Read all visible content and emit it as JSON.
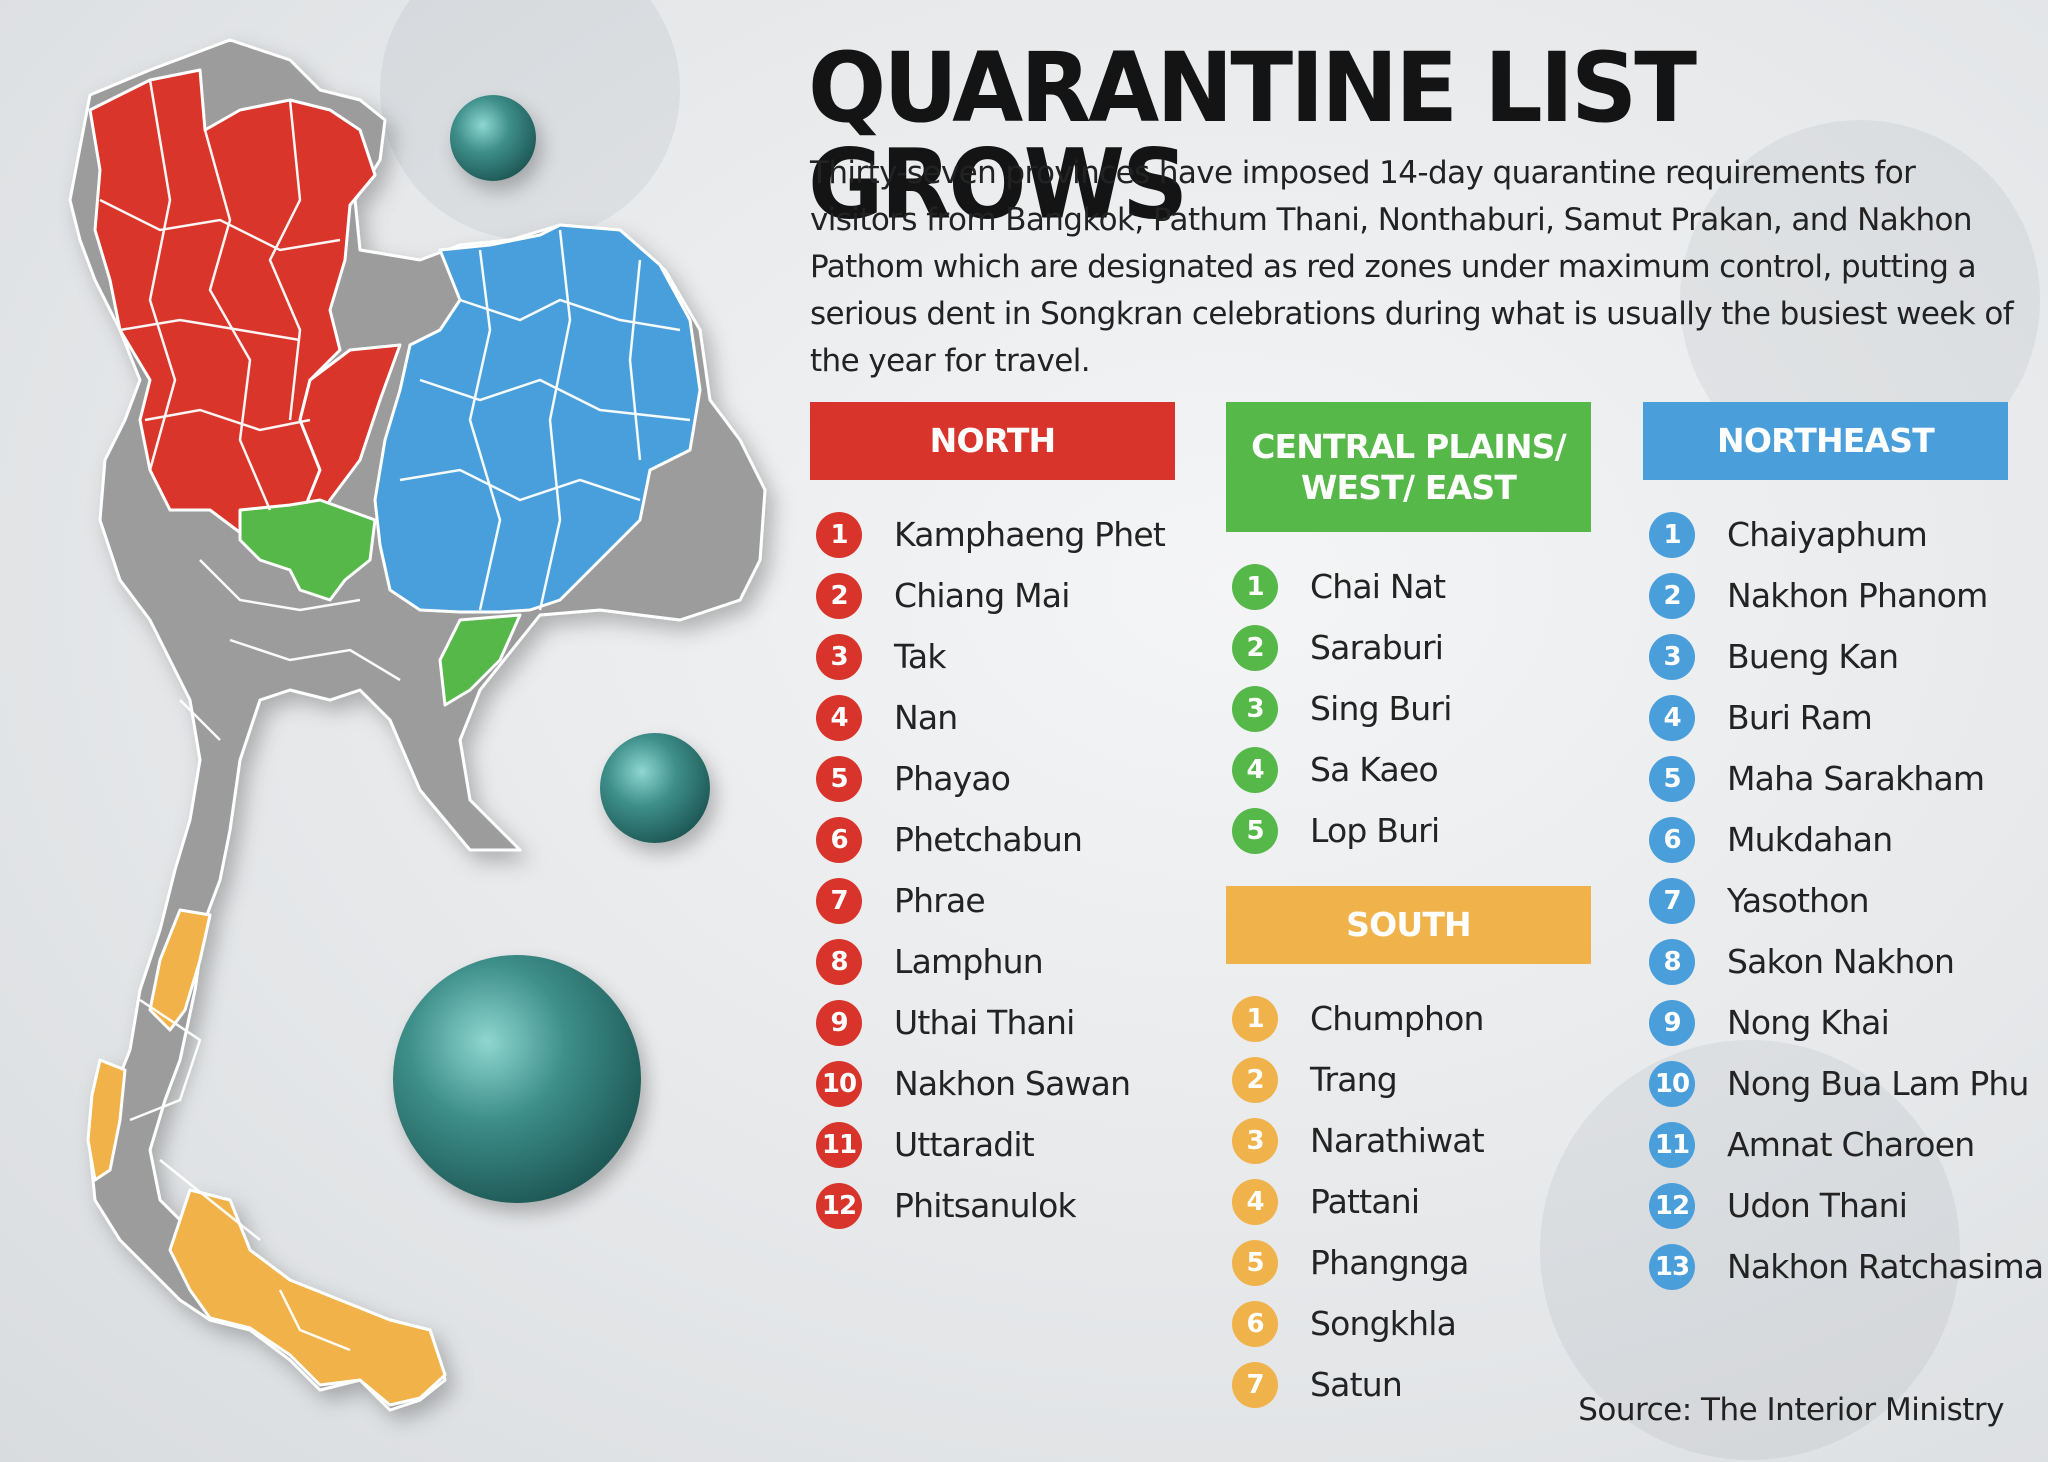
{
  "title": "QUARANTINE LIST GROWS",
  "intro": "Thirty-seven provinces have imposed 14-day quarantine requirements for visitors from Bangkok, Pathum Thani, Nonthaburi, Samut Prakan, and Nakhon Pathom which are designated as red zones under maximum control, putting a serious dent in Songkran celebrations during what is usually the busiest week of the year for travel.",
  "source": "Source: The Interior Ministry",
  "colors": {
    "north": "#d9342b",
    "central": "#57b84a",
    "northeast": "#4a9fdb",
    "south": "#f0b24a",
    "other": "#9c9c9c"
  },
  "regions": {
    "north": {
      "label": "NORTH",
      "items": [
        {
          "num": "1",
          "name": "Kamphaeng Phet"
        },
        {
          "num": "2",
          "name": "Chiang Mai"
        },
        {
          "num": "3",
          "name": "Tak"
        },
        {
          "num": "4",
          "name": "Nan"
        },
        {
          "num": "5",
          "name": "Phayao"
        },
        {
          "num": "6",
          "name": "Phetchabun"
        },
        {
          "num": "7",
          "name": "Phrae"
        },
        {
          "num": "8",
          "name": "Lamphun"
        },
        {
          "num": "9",
          "name": "Uthai Thani"
        },
        {
          "num": "10",
          "name": "Nakhon Sawan"
        },
        {
          "num": "11",
          "name": "Uttaradit"
        },
        {
          "num": "12",
          "name": "Phitsanulok"
        }
      ]
    },
    "central": {
      "label_line1": "CENTRAL PLAINS/",
      "label_line2": "WEST/ EAST",
      "items": [
        {
          "num": "1",
          "name": "Chai Nat"
        },
        {
          "num": "2",
          "name": "Saraburi"
        },
        {
          "num": "3",
          "name": "Sing Buri"
        },
        {
          "num": "4",
          "name": "Sa Kaeo"
        },
        {
          "num": "5",
          "name": "Lop Buri"
        }
      ]
    },
    "south": {
      "label": "SOUTH",
      "items": [
        {
          "num": "1",
          "name": "Chumphon"
        },
        {
          "num": "2",
          "name": "Trang"
        },
        {
          "num": "3",
          "name": "Narathiwat"
        },
        {
          "num": "4",
          "name": "Pattani"
        },
        {
          "num": "5",
          "name": "Phangnga"
        },
        {
          "num": "6",
          "name": "Songkhla"
        },
        {
          "num": "7",
          "name": "Satun"
        }
      ]
    },
    "northeast": {
      "label": "NORTHEAST",
      "items": [
        {
          "num": "1",
          "name": "Chaiyaphum"
        },
        {
          "num": "2",
          "name": "Nakhon Phanom"
        },
        {
          "num": "3",
          "name": "Bueng Kan"
        },
        {
          "num": "4",
          "name": "Buri Ram"
        },
        {
          "num": "5",
          "name": "Maha Sarakham"
        },
        {
          "num": "6",
          "name": "Mukdahan"
        },
        {
          "num": "7",
          "name": "Yasothon"
        },
        {
          "num": "8",
          "name": "Sakon Nakhon"
        },
        {
          "num": "9",
          "name": "Nong Khai"
        },
        {
          "num": "10",
          "name": "Nong Bua Lam Phu"
        },
        {
          "num": "11",
          "name": "Amnat Charoen"
        },
        {
          "num": "12",
          "name": "Udon Thani"
        },
        {
          "num": "13",
          "name": "Nakhon Ratchasima"
        }
      ]
    }
  }
}
